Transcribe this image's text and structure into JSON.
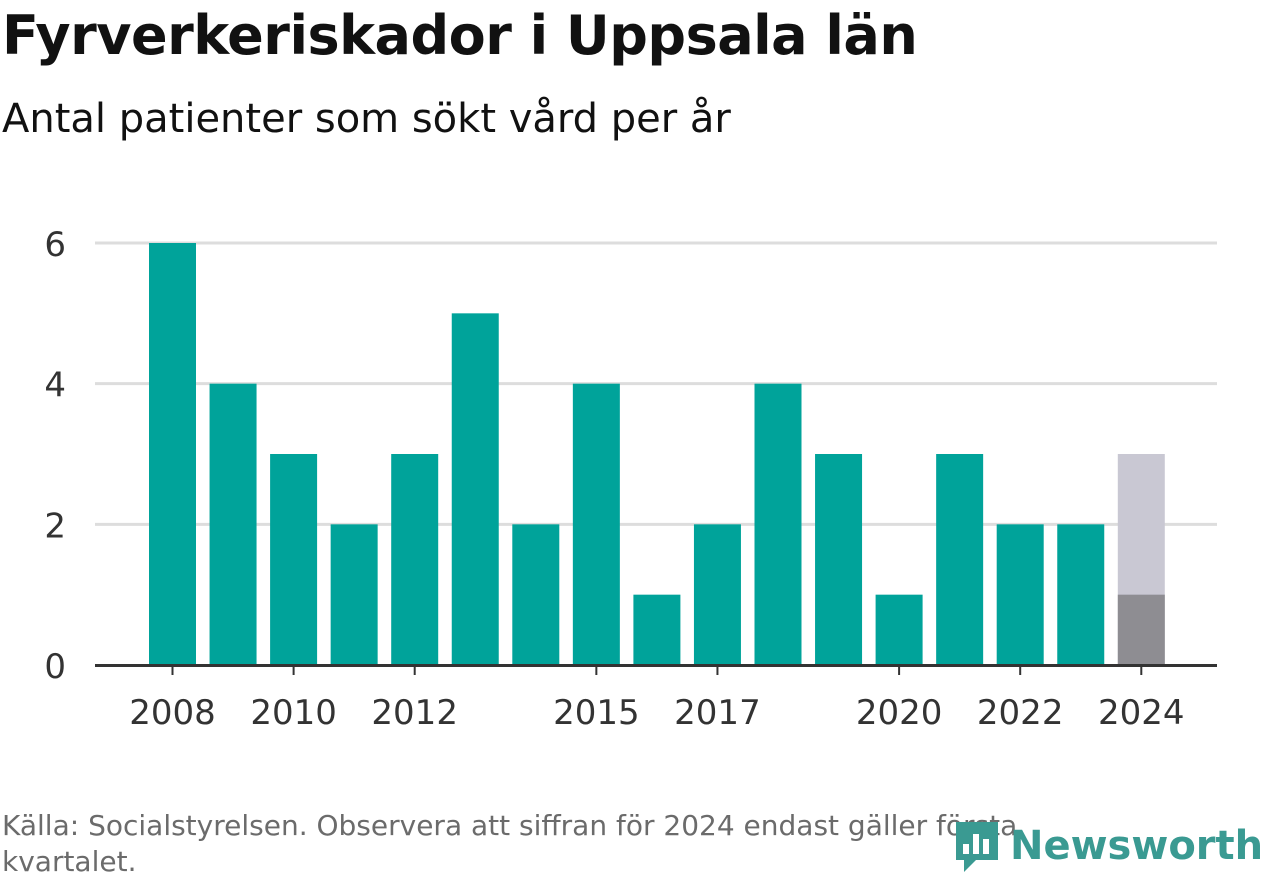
{
  "header": {
    "title": "Fyrverkeriskador i Uppsala län",
    "subtitle": "Antal patienter som sökt vård per år"
  },
  "footer": {
    "source": "Källa: Socialstyrelsen. Observera att siffran för 2024 endast gäller första kvartalet.",
    "logo_text": "Newsworthy",
    "logo_icon": "newsworthy-chart-bubble-icon"
  },
  "colors": {
    "bar": "#00a39a",
    "projection_bar": "#c9c8d3",
    "partial_bar": "#8e8d92",
    "grid": "#dddddd",
    "axis": "#333333",
    "text": "#333333",
    "logo": "#3a9a92"
  },
  "chart_data": {
    "type": "bar",
    "title": "Fyrverkeriskador i Uppsala län",
    "subtitle": "Antal patienter som sökt vård per år",
    "xlabel": "",
    "ylabel": "",
    "ylim": [
      0,
      6
    ],
    "yticks": [
      0,
      2,
      4,
      6
    ],
    "grid": true,
    "categories": [
      2008,
      2009,
      2010,
      2011,
      2012,
      2013,
      2014,
      2015,
      2016,
      2017,
      2018,
      2019,
      2020,
      2021,
      2022,
      2023,
      2024
    ],
    "xtick_labels": [
      2008,
      2010,
      2012,
      2015,
      2017,
      2020,
      2022,
      2024
    ],
    "values": [
      6,
      4,
      3,
      2,
      3,
      5,
      2,
      4,
      1,
      2,
      4,
      3,
      1,
      3,
      2,
      2,
      1
    ],
    "projected_2024": 3
  }
}
